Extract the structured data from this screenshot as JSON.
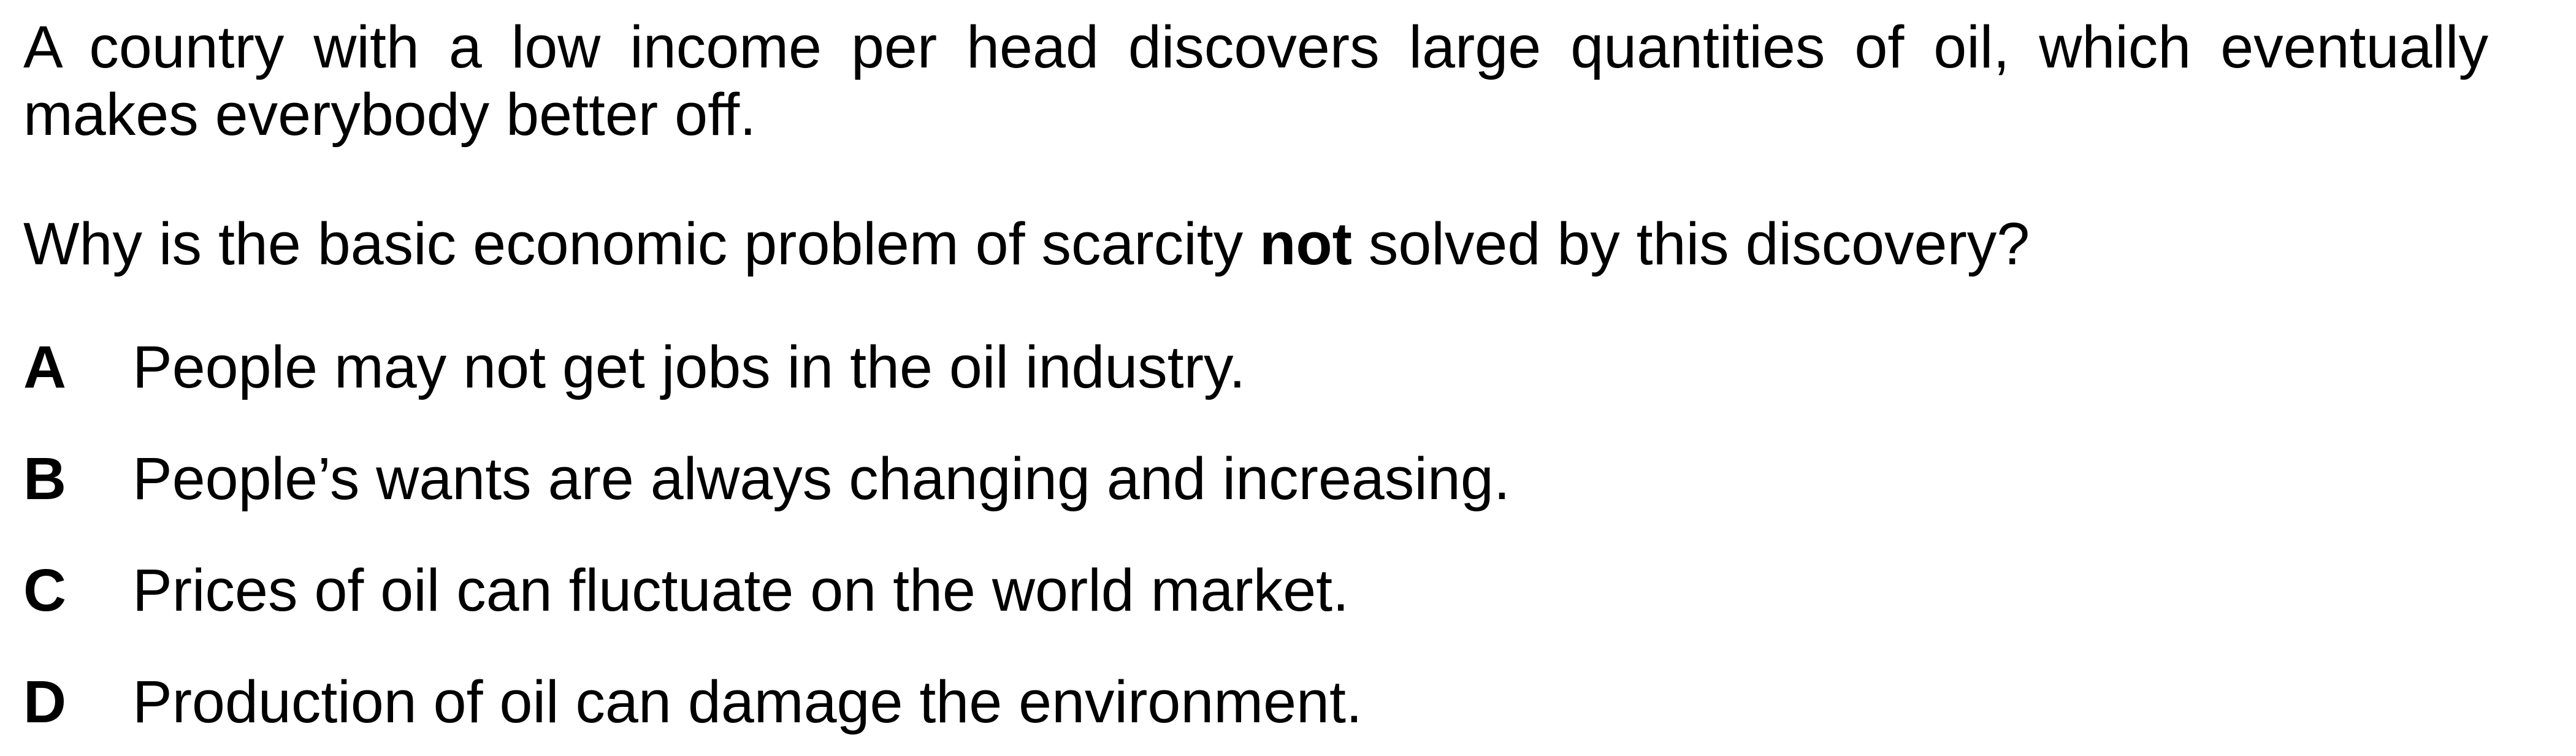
{
  "question": {
    "stem": "A country with a low income per head discovers large quantities of oil, which eventually makes everybody better off.",
    "prompt_before": "Why is the basic economic problem of scarcity ",
    "prompt_emphasis": "not",
    "prompt_after": " solved by this discovery?"
  },
  "options": [
    {
      "letter": "A",
      "text": "People may not get jobs in the oil industry."
    },
    {
      "letter": "B",
      "text": "People’s wants are always changing and increasing."
    },
    {
      "letter": "C",
      "text": "Prices of oil can fluctuate on the world market."
    },
    {
      "letter": "D",
      "text": "Production of oil can damage the environment."
    }
  ]
}
